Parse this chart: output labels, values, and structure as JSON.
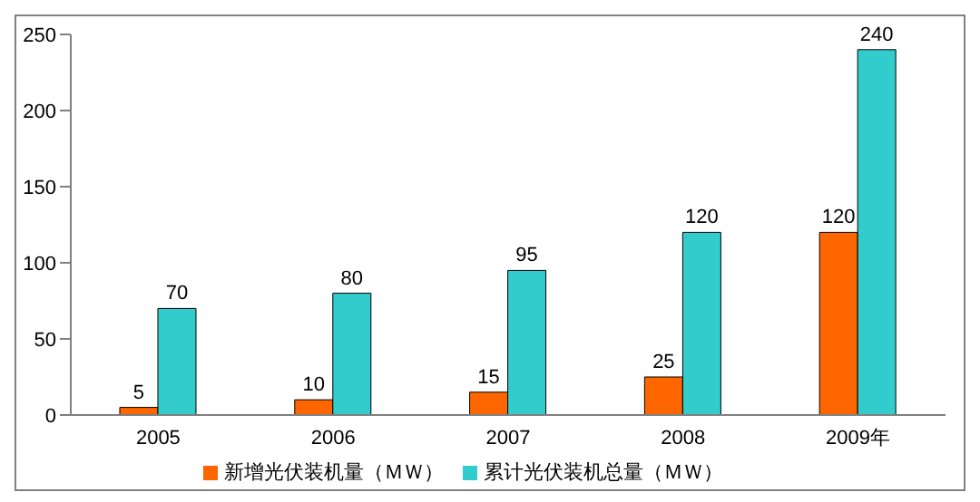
{
  "chart_data": {
    "type": "bar",
    "categories": [
      "2005",
      "2006",
      "2007",
      "2008",
      "2009年"
    ],
    "series": [
      {
        "name": "新增光伏装机量（ＭＷ）",
        "color": "#ff6600",
        "values": [
          5,
          10,
          15,
          25,
          120
        ]
      },
      {
        "name": "累计光伏装机总量（ＭＷ）",
        "color": "#33cccc",
        "values": [
          70,
          80,
          95,
          120,
          240
        ]
      }
    ],
    "ylim": [
      0,
      250
    ],
    "yticks": [
      0,
      50,
      100,
      150,
      200,
      250
    ],
    "grid": false,
    "legend": "bottom",
    "data_labels": true
  }
}
